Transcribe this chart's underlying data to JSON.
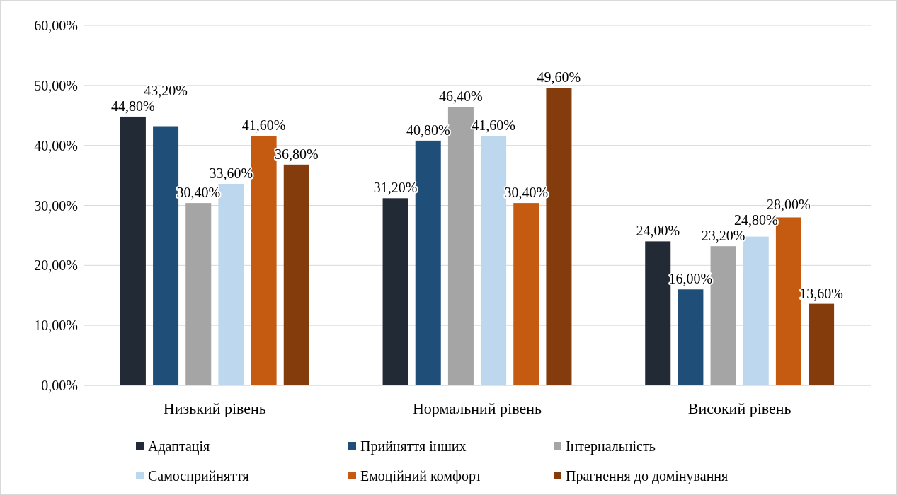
{
  "chart_data": {
    "type": "bar",
    "categories": [
      "Низький рівень",
      "Нормальний рівень",
      "Високий рівень"
    ],
    "series": [
      {
        "name": "Адаптація",
        "color": "#222a35",
        "values": [
          44.8,
          31.2,
          24.0
        ],
        "value_labels": [
          "44,80%",
          "31,20%",
          "24,00%"
        ]
      },
      {
        "name": "Прийняття інших",
        "color": "#1f4e79",
        "values": [
          43.2,
          40.8,
          16.0
        ],
        "value_labels": [
          "43,20%",
          "40,80%",
          "16,00%"
        ]
      },
      {
        "name": "Інтернальність",
        "color": "#a5a5a5",
        "values": [
          30.4,
          46.4,
          23.2
        ],
        "value_labels": [
          "30,40%",
          "46,40%",
          "23,20%"
        ]
      },
      {
        "name": "Самосприйняття",
        "color": "#bdd7ee",
        "values": [
          33.6,
          41.6,
          24.8
        ],
        "value_labels": [
          "33,60%",
          "41,60%",
          "24,80%"
        ]
      },
      {
        "name": "Емоційний комфорт",
        "color": "#c55a11",
        "values": [
          41.6,
          30.4,
          28.0
        ],
        "value_labels": [
          "41,60%",
          "30,40%",
          "28,00%"
        ]
      },
      {
        "name": "Прагнення до домінування",
        "color": "#843c0c",
        "values": [
          36.8,
          49.6,
          13.6
        ],
        "value_labels": [
          "36,80%",
          "49,60%",
          "13,60%"
        ]
      }
    ],
    "ylim": [
      0,
      60
    ],
    "yticks": [
      {
        "value": 0,
        "label": "0,00%"
      },
      {
        "value": 10,
        "label": "10,00%"
      },
      {
        "value": 20,
        "label": "20,00%"
      },
      {
        "value": 30,
        "label": "30,00%"
      },
      {
        "value": 40,
        "label": "40,00%"
      },
      {
        "value": 50,
        "label": "50,00%"
      },
      {
        "value": 60,
        "label": "60,00%"
      }
    ],
    "grid": "y",
    "legend": "bottom"
  }
}
